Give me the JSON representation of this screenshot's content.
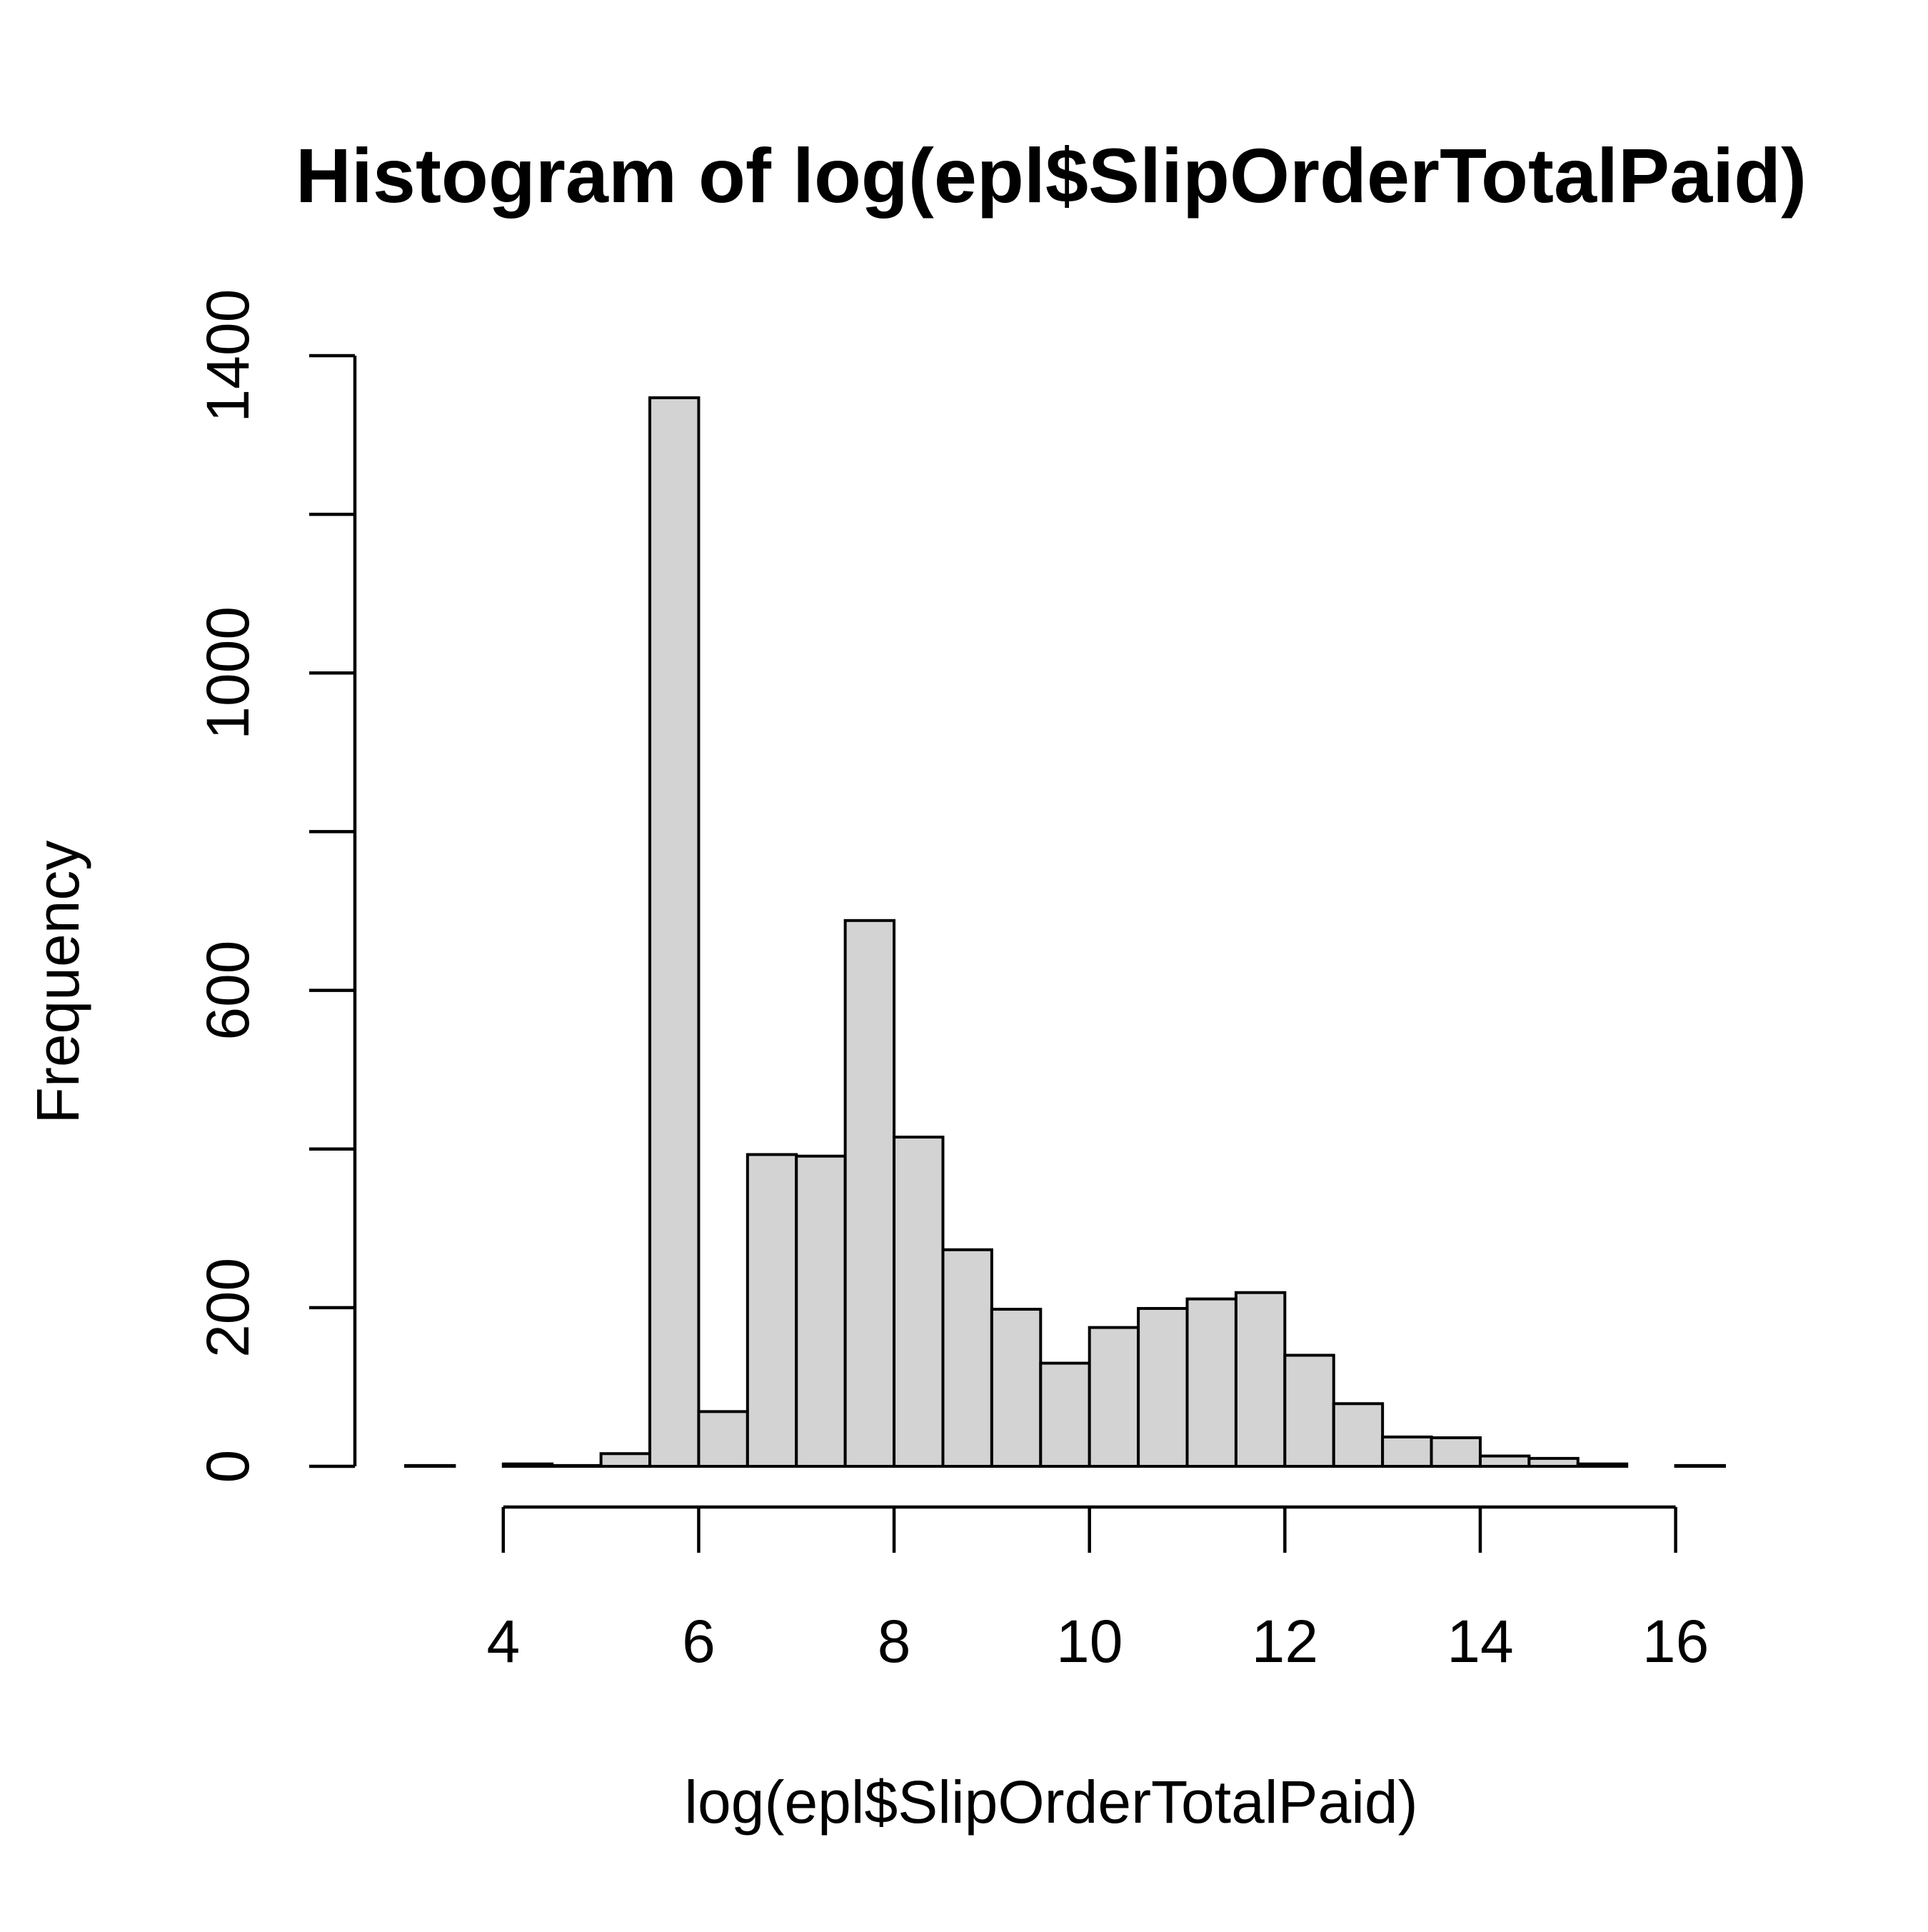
{
  "chart_data": {
    "type": "bar",
    "title": "Histogram of log(epl$SlipOrderTotalPaid)",
    "xlabel": "log(epl$SlipOrderTotalPaid)",
    "ylabel": "Frequency",
    "bin_width": 0.5,
    "bins": [
      {
        "x0": 3.0,
        "x1": 3.5,
        "count": 1
      },
      {
        "x0": 3.5,
        "x1": 4.0,
        "count": 0
      },
      {
        "x0": 4.0,
        "x1": 4.5,
        "count": 3
      },
      {
        "x0": 4.5,
        "x1": 5.0,
        "count": 1
      },
      {
        "x0": 5.0,
        "x1": 5.5,
        "count": 16
      },
      {
        "x0": 5.5,
        "x1": 6.0,
        "count": 1347
      },
      {
        "x0": 6.0,
        "x1": 6.5,
        "count": 69
      },
      {
        "x0": 6.5,
        "x1": 7.0,
        "count": 393
      },
      {
        "x0": 7.0,
        "x1": 7.5,
        "count": 391
      },
      {
        "x0": 7.5,
        "x1": 8.0,
        "count": 688
      },
      {
        "x0": 8.0,
        "x1": 8.5,
        "count": 415
      },
      {
        "x0": 8.5,
        "x1": 9.0,
        "count": 273
      },
      {
        "x0": 9.0,
        "x1": 9.5,
        "count": 198
      },
      {
        "x0": 9.5,
        "x1": 10.0,
        "count": 130
      },
      {
        "x0": 10.0,
        "x1": 10.5,
        "count": 175
      },
      {
        "x0": 10.5,
        "x1": 11.0,
        "count": 199
      },
      {
        "x0": 11.0,
        "x1": 11.5,
        "count": 211
      },
      {
        "x0": 11.5,
        "x1": 12.0,
        "count": 219
      },
      {
        "x0": 12.0,
        "x1": 12.5,
        "count": 140
      },
      {
        "x0": 12.5,
        "x1": 13.0,
        "count": 79
      },
      {
        "x0": 13.0,
        "x1": 13.5,
        "count": 37
      },
      {
        "x0": 13.5,
        "x1": 14.0,
        "count": 36
      },
      {
        "x0": 14.0,
        "x1": 14.5,
        "count": 13
      },
      {
        "x0": 14.5,
        "x1": 15.0,
        "count": 10
      },
      {
        "x0": 15.0,
        "x1": 15.5,
        "count": 3
      },
      {
        "x0": 15.5,
        "x1": 16.0,
        "count": 0
      },
      {
        "x0": 16.0,
        "x1": 16.5,
        "count": 1
      }
    ],
    "x_ticks": [
      4,
      6,
      8,
      10,
      12,
      14,
      16
    ],
    "x_tick_labels": [
      "4",
      "6",
      "8",
      "10",
      "12",
      "14",
      "16"
    ],
    "y_ticks": [
      0,
      200,
      400,
      600,
      800,
      1000,
      1200,
      1400
    ],
    "y_tick_labels": [
      "0",
      "200",
      "",
      "600",
      "",
      "1000",
      "",
      "1400"
    ],
    "xlim": [
      3,
      16.5
    ],
    "ylim": [
      0,
      1400
    ],
    "bar_fill": "#d3d3d3",
    "bar_stroke": "#000000",
    "grid": false,
    "legend": "none"
  }
}
